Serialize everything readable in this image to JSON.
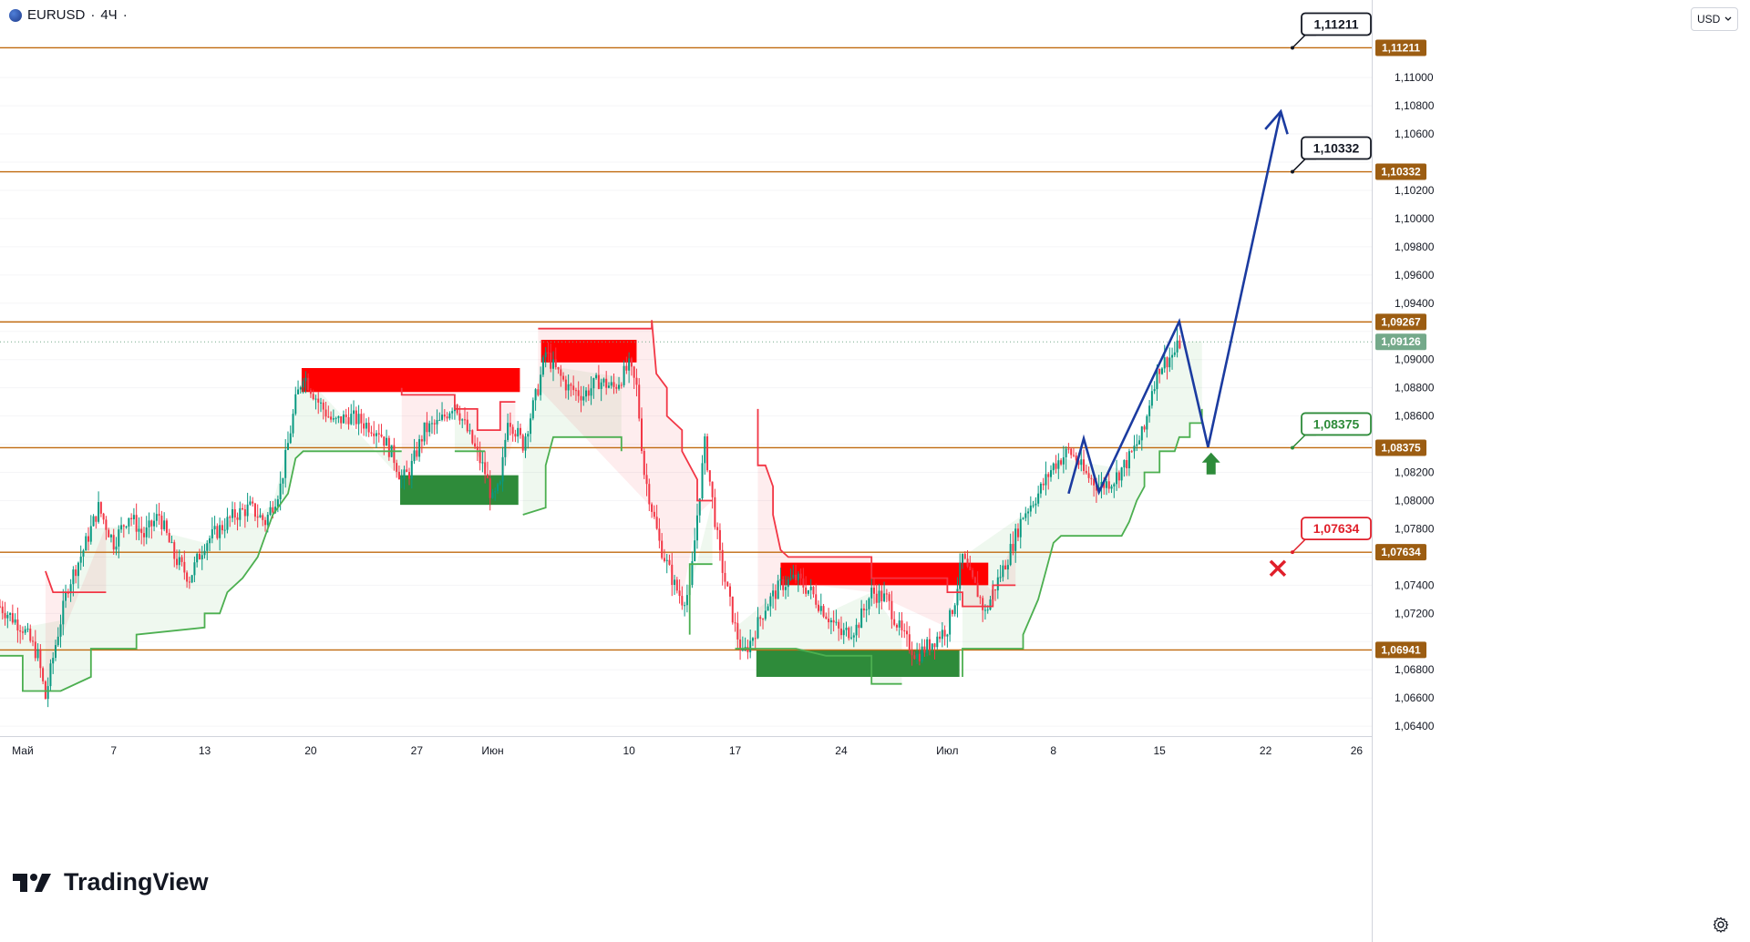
{
  "header": {
    "symbol": "EURUSD",
    "separator": "·",
    "timeframe": "4Ч",
    "dot": "·"
  },
  "currency": {
    "label": "USD"
  },
  "logo": {
    "text": "TradingView"
  },
  "colors": {
    "up": "#089981",
    "down": "#f23645",
    "level": "#c06a0f",
    "wave": "#1b3ba0",
    "supertrend_up": "#4caf50",
    "supertrend_down": "#f23645",
    "zone_red": "#ff0000",
    "zone_green": "#2e8b3a",
    "label_bg": "#9c5d12",
    "last_price_bg": "#74a98a"
  },
  "chart_data": {
    "type": "candlestick",
    "symbol": "EURUSD",
    "timeframe": "4Ч",
    "x_axis": {
      "ticks": [
        {
          "label": "Май",
          "day": 0
        },
        {
          "label": "7",
          "day": 6
        },
        {
          "label": "13",
          "day": 12
        },
        {
          "label": "20",
          "day": 19
        },
        {
          "label": "27",
          "day": 26
        },
        {
          "label": "Июн",
          "day": 31
        },
        {
          "label": "10",
          "day": 40
        },
        {
          "label": "17",
          "day": 47
        },
        {
          "label": "24",
          "day": 54
        },
        {
          "label": "Июл",
          "day": 61
        },
        {
          "label": "8",
          "day": 68
        },
        {
          "label": "15",
          "day": 75
        },
        {
          "label": "22",
          "day": 82
        },
        {
          "label": "26",
          "day": 88
        }
      ],
      "range_days": [
        -1.5,
        89
      ]
    },
    "y_axis": {
      "ylim": [
        1.0633,
        1.1155
      ],
      "ticks": [
        "1,06400",
        "1,06600",
        "1,06800",
        "1,07000",
        "1,07200",
        "1,07400",
        "1,07600",
        "1,07800",
        "1,08000",
        "1,08200",
        "1,08400",
        "1,08600",
        "1,08800",
        "1,09000",
        "1,09200",
        "1,09400",
        "1,09600",
        "1,09800",
        "1,10000",
        "1,10200",
        "1,10400",
        "1,10600",
        "1,10800",
        "1,11000"
      ],
      "tick_values": [
        1.064,
        1.066,
        1.068,
        1.07,
        1.072,
        1.074,
        1.076,
        1.078,
        1.08,
        1.082,
        1.084,
        1.086,
        1.088,
        1.09,
        1.092,
        1.094,
        1.096,
        1.098,
        1.1,
        1.102,
        1.104,
        1.106,
        1.108,
        1.11
      ]
    },
    "levels": [
      {
        "value": 1.11211,
        "label": "1,11211",
        "callout": "1,11211",
        "callout_style": "black"
      },
      {
        "value": 1.10332,
        "label": "1,10332",
        "callout": "1,10332",
        "callout_style": "black"
      },
      {
        "value": 1.09267,
        "label": "1,09267"
      },
      {
        "value": 1.08375,
        "label": "1,08375",
        "callout": "1,08375",
        "callout_style": "green"
      },
      {
        "value": 1.07634,
        "label": "1,07634",
        "callout": "1,07634",
        "callout_style": "red"
      },
      {
        "value": 1.06941,
        "label": "1,06941"
      }
    ],
    "last_price": {
      "value": 1.09126,
      "label": "1,09126"
    },
    "price_path": [
      [
        -1.5,
        1.0725
      ],
      [
        0,
        1.071
      ],
      [
        1,
        1.069
      ],
      [
        1.5,
        1.066
      ],
      [
        2.2,
        1.07
      ],
      [
        3,
        1.074
      ],
      [
        4,
        1.0765
      ],
      [
        5,
        1.0795
      ],
      [
        6,
        1.077
      ],
      [
        7,
        1.079
      ],
      [
        8,
        1.0775
      ],
      [
        9,
        1.079
      ],
      [
        10,
        1.076
      ],
      [
        11,
        1.0745
      ],
      [
        12,
        1.077
      ],
      [
        13,
        1.078
      ],
      [
        14,
        1.079
      ],
      [
        15,
        1.0795
      ],
      [
        16,
        1.0785
      ],
      [
        17,
        1.081
      ],
      [
        18,
        1.087
      ],
      [
        18.5,
        1.089
      ],
      [
        19.5,
        1.087
      ],
      [
        20.5,
        1.0855
      ],
      [
        21.5,
        1.086
      ],
      [
        22.5,
        1.0855
      ],
      [
        23.5,
        1.085
      ],
      [
        24.5,
        1.083
      ],
      [
        25,
        1.0815
      ],
      [
        25.5,
        1.082
      ],
      [
        26.5,
        1.085
      ],
      [
        27.5,
        1.0855
      ],
      [
        28.5,
        1.087
      ],
      [
        29.5,
        1.0845
      ],
      [
        30.5,
        1.082
      ],
      [
        31,
        1.08
      ],
      [
        31.5,
        1.081
      ],
      [
        32,
        1.086
      ],
      [
        33,
        1.084
      ],
      [
        34,
        1.088
      ],
      [
        34.5,
        1.0905
      ],
      [
        35,
        1.0895
      ],
      [
        36,
        1.088
      ],
      [
        37,
        1.0875
      ],
      [
        38,
        1.0885
      ],
      [
        39,
        1.088
      ],
      [
        40,
        1.0895
      ],
      [
        40.5,
        1.088
      ],
      [
        41,
        1.082
      ],
      [
        42,
        1.077
      ],
      [
        43,
        1.074
      ],
      [
        43.5,
        1.073
      ],
      [
        44,
        1.0735
      ],
      [
        44.5,
        1.079
      ],
      [
        45,
        1.084
      ],
      [
        45.5,
        1.08
      ],
      [
        46,
        1.076
      ],
      [
        46.5,
        1.0735
      ],
      [
        47,
        1.071
      ],
      [
        47.5,
        1.069
      ],
      [
        48,
        1.07
      ],
      [
        49,
        1.0725
      ],
      [
        50,
        1.074
      ],
      [
        51,
        1.0745
      ],
      [
        52,
        1.0735
      ],
      [
        53,
        1.072
      ],
      [
        54,
        1.0705
      ],
      [
        55,
        1.071
      ],
      [
        56,
        1.0735
      ],
      [
        57,
        1.073
      ],
      [
        58,
        1.0705
      ],
      [
        59,
        1.069
      ],
      [
        60,
        1.07
      ],
      [
        61,
        1.071
      ],
      [
        61.5,
        1.073
      ],
      [
        62,
        1.076
      ],
      [
        62.5,
        1.0745
      ],
      [
        63,
        1.0735
      ],
      [
        63.5,
        1.072
      ],
      [
        64,
        1.0735
      ],
      [
        65,
        1.076
      ],
      [
        66,
        1.079
      ],
      [
        67,
        1.0805
      ],
      [
        68,
        1.0825
      ],
      [
        69,
        1.0835
      ],
      [
        69.5,
        1.083
      ],
      [
        70,
        1.082
      ],
      [
        71,
        1.081
      ],
      [
        72,
        1.0815
      ],
      [
        73,
        1.083
      ],
      [
        74,
        1.085
      ],
      [
        74.5,
        1.088
      ],
      [
        75,
        1.0895
      ],
      [
        76,
        1.0905
      ],
      [
        76.4,
        1.0913
      ]
    ],
    "supertrend_up": [
      [
        [
          -1.5,
          1.069
        ],
        [
          0,
          1.069
        ],
        [
          0,
          1.0665
        ],
        [
          2.5,
          1.0665
        ],
        [
          2.5,
          1.0665
        ],
        [
          4.5,
          1.0675
        ],
        [
          4.5,
          1.0695
        ],
        [
          7.5,
          1.0695
        ],
        [
          7.5,
          1.0705
        ],
        [
          12,
          1.071
        ],
        [
          12,
          1.072
        ],
        [
          13,
          1.072
        ],
        [
          13.5,
          1.0735
        ],
        [
          14.5,
          1.0745
        ],
        [
          15.5,
          1.076
        ],
        [
          16.5,
          1.079
        ],
        [
          17.5,
          1.0805
        ],
        [
          18,
          1.083
        ],
        [
          18.5,
          1.0835
        ],
        [
          25,
          1.0835
        ]
      ],
      [
        [
          28.5,
          1.0835
        ],
        [
          30.5,
          1.0835
        ]
      ],
      [
        [
          33,
          1.079
        ],
        [
          34.5,
          1.0795
        ],
        [
          34.5,
          1.0825
        ],
        [
          35,
          1.0845
        ],
        [
          39.5,
          1.0845
        ],
        [
          39.5,
          1.0835
        ]
      ],
      [
        [
          44,
          1.0705
        ],
        [
          44,
          1.0755
        ],
        [
          45.5,
          1.0755
        ]
      ],
      [
        [
          47,
          1.0695
        ],
        [
          51,
          1.0695
        ],
        [
          53,
          1.069
        ],
        [
          56,
          1.069
        ],
        [
          56,
          1.067
        ],
        [
          58,
          1.067
        ]
      ],
      [
        [
          62,
          1.0675
        ],
        [
          62,
          1.0695
        ],
        [
          66,
          1.0695
        ],
        [
          66,
          1.0705
        ],
        [
          67,
          1.073
        ],
        [
          67.5,
          1.075
        ],
        [
          68,
          1.077
        ],
        [
          68.5,
          1.0775
        ],
        [
          72.5,
          1.0775
        ],
        [
          73,
          1.0785
        ],
        [
          73.5,
          1.08
        ],
        [
          74,
          1.081
        ],
        [
          74,
          1.082
        ],
        [
          75,
          1.082
        ],
        [
          75,
          1.0835
        ],
        [
          76,
          1.0835
        ],
        [
          76.3,
          1.0845
        ],
        [
          77,
          1.0845
        ],
        [
          77,
          1.0855
        ],
        [
          77.8,
          1.0855
        ],
        [
          77.8,
          1.0865
        ]
      ]
    ],
    "supertrend_down": [
      [
        [
          1.5,
          1.075
        ],
        [
          2,
          1.0735
        ],
        [
          2,
          1.0735
        ],
        [
          5.5,
          1.0735
        ]
      ],
      [
        [
          25,
          1.088
        ],
        [
          25,
          1.0875
        ],
        [
          28.5,
          1.0875
        ],
        [
          28.5,
          1.0865
        ],
        [
          30,
          1.0865
        ],
        [
          30,
          1.085
        ],
        [
          31.5,
          1.085
        ],
        [
          31.5,
          1.087
        ],
        [
          32.5,
          1.087
        ]
      ],
      [
        [
          34,
          1.0922
        ],
        [
          41.5,
          1.0922
        ],
        [
          41.5,
          1.0928
        ],
        [
          41.8,
          1.089
        ],
        [
          42.5,
          1.088
        ],
        [
          42.5,
          1.086
        ],
        [
          43.5,
          1.085
        ],
        [
          43.5,
          1.0835
        ],
        [
          44.5,
          1.0815
        ],
        [
          44.5,
          1.08
        ],
        [
          45.5,
          1.08
        ]
      ],
      [
        [
          48.5,
          1.0865
        ],
        [
          48.5,
          1.0825
        ],
        [
          49,
          1.0825
        ],
        [
          49.5,
          1.081
        ],
        [
          49.5,
          1.079
        ],
        [
          50,
          1.0765
        ],
        [
          50.5,
          1.076
        ],
        [
          56,
          1.076
        ],
        [
          56,
          1.0745
        ],
        [
          61,
          1.0745
        ],
        [
          61,
          1.0735
        ],
        [
          62,
          1.0735
        ],
        [
          62,
          1.0725
        ],
        [
          64,
          1.0725
        ],
        [
          64,
          1.074
        ],
        [
          65.5,
          1.074
        ]
      ]
    ],
    "zones": [
      {
        "type": "supply",
        "x0": 18.4,
        "x1": 32.8,
        "y0": 1.0877,
        "y1": 1.0894
      },
      {
        "type": "demand",
        "x0": 24.9,
        "x1": 32.7,
        "y0": 1.0797,
        "y1": 1.0818
      },
      {
        "type": "supply",
        "x0": 34.2,
        "x1": 40.5,
        "y0": 1.0898,
        "y1": 1.0914
      },
      {
        "type": "supply",
        "x0": 50.0,
        "x1": 63.7,
        "y0": 1.074,
        "y1": 1.0756
      },
      {
        "type": "demand",
        "x0": 48.4,
        "x1": 61.8,
        "y0": 1.0675,
        "y1": 1.0694
      }
    ],
    "forecast_wave": [
      [
        69,
        1.0805
      ],
      [
        70,
        1.0844
      ],
      [
        71,
        1.0806
      ],
      [
        76.3,
        1.0927
      ],
      [
        78.2,
        1.0838
      ],
      [
        83,
        1.1076
      ]
    ],
    "markers": [
      {
        "type": "buy-arrow",
        "x": 78.4,
        "y": 1.0825
      },
      {
        "type": "stop-cross",
        "x": 82.8,
        "y": 1.0752
      }
    ]
  }
}
